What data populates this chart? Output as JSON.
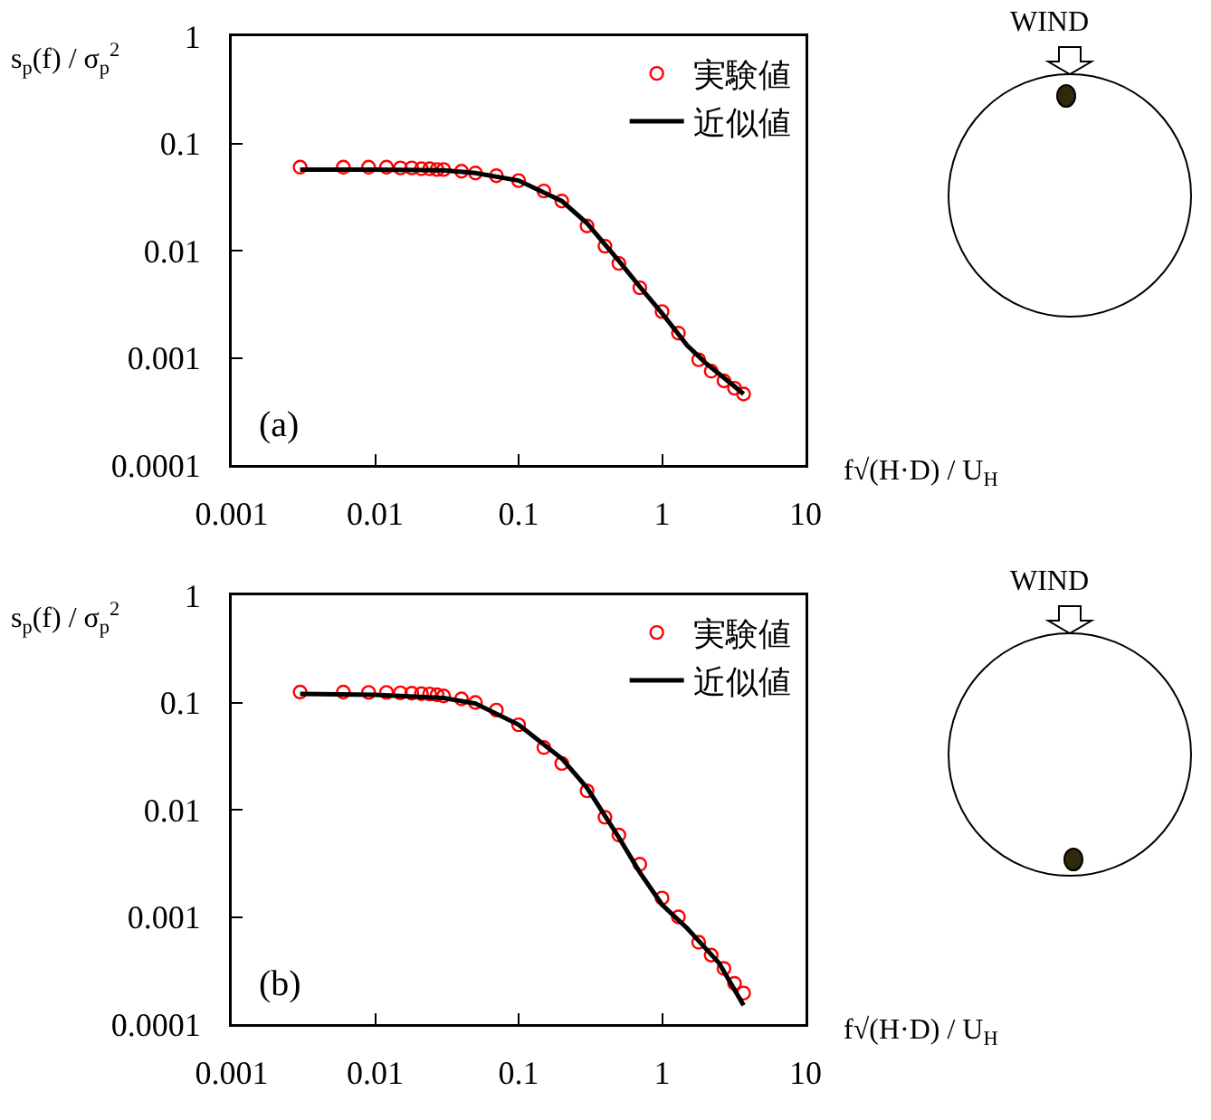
{
  "chart_data": [
    {
      "type": "scatter",
      "ylabel": "s$_{p}$(f) / σ$_{p}$$^{2}$",
      "xlabel": "f√(H·D) / U$_{H}$",
      "annotations": [
        "(a)",
        "WIND"
      ],
      "log": "xy",
      "xlim": [
        0.001,
        10
      ],
      "ylim": [
        0.0001,
        1
      ],
      "xticks": [
        0.001,
        0.01,
        0.1,
        1,
        10
      ],
      "yticks": [
        0.0001,
        0.001,
        0.01,
        0.1,
        1
      ],
      "grid": false,
      "legend": "top right",
      "series": [
        {
          "name": "実験値",
          "marker": "circle",
          "color": "#ff0000",
          "x": [
            0.003,
            0.006,
            0.009,
            0.012,
            0.015,
            0.018,
            0.021,
            0.024,
            0.027,
            0.03,
            0.04,
            0.05,
            0.07,
            0.1,
            0.15,
            0.2,
            0.3,
            0.4,
            0.5,
            0.7,
            1,
            1.3,
            1.8,
            2.2,
            2.7,
            3.2,
            3.7
          ],
          "values": [
            0.06,
            0.06,
            0.06,
            0.06,
            0.059,
            0.059,
            0.058,
            0.058,
            0.057,
            0.057,
            0.055,
            0.053,
            0.05,
            0.045,
            0.036,
            0.029,
            0.017,
            0.011,
            0.0076,
            0.0045,
            0.0027,
            0.0017,
            0.00096,
            0.00075,
            0.00061,
            0.00052,
            0.00046
          ]
        },
        {
          "name": "近似値",
          "type": "line",
          "color": "#000000",
          "x": [
            0.003,
            0.01,
            0.03,
            0.05,
            0.1,
            0.2,
            0.3,
            0.5,
            0.7,
            1,
            1.5,
            2,
            3,
            3.7
          ],
          "values": [
            0.057,
            0.057,
            0.056,
            0.053,
            0.045,
            0.029,
            0.018,
            0.008,
            0.0046,
            0.0026,
            0.0013,
            0.0009,
            0.00058,
            0.00046
          ]
        }
      ]
    },
    {
      "type": "scatter",
      "ylabel": "s$_{p}$(f) / σ$_{p}$$^{2}$",
      "xlabel": "f√(H·D) / U$_{H}$",
      "annotations": [
        "(b)",
        "WIND"
      ],
      "log": "xy",
      "xlim": [
        0.001,
        10
      ],
      "ylim": [
        0.0001,
        1
      ],
      "xticks": [
        0.001,
        0.01,
        0.1,
        1,
        10
      ],
      "yticks": [
        0.0001,
        0.001,
        0.01,
        0.1,
        1
      ],
      "grid": false,
      "legend": "top right",
      "series": [
        {
          "name": "実験値",
          "marker": "circle",
          "color": "#ff0000",
          "x": [
            0.003,
            0.006,
            0.009,
            0.012,
            0.015,
            0.018,
            0.021,
            0.024,
            0.027,
            0.03,
            0.04,
            0.05,
            0.07,
            0.1,
            0.15,
            0.2,
            0.3,
            0.4,
            0.5,
            0.7,
            1,
            1.3,
            1.8,
            2.2,
            2.7,
            3.2,
            3.7
          ],
          "values": [
            0.125,
            0.125,
            0.124,
            0.124,
            0.123,
            0.122,
            0.121,
            0.12,
            0.118,
            0.115,
            0.108,
            0.1,
            0.085,
            0.062,
            0.038,
            0.027,
            0.015,
            0.0085,
            0.0058,
            0.0031,
            0.0015,
            0.001,
            0.00058,
            0.00044,
            0.00033,
            0.00024,
            0.000195
          ]
        },
        {
          "name": "近似値",
          "type": "line",
          "color": "#000000",
          "x": [
            0.003,
            0.01,
            0.03,
            0.05,
            0.1,
            0.2,
            0.3,
            0.5,
            0.7,
            1,
            1.5,
            2.5,
            3.7
          ],
          "values": [
            0.12,
            0.118,
            0.11,
            0.098,
            0.062,
            0.03,
            0.016,
            0.0055,
            0.0026,
            0.0013,
            0.00078,
            0.00037,
            0.00015
          ]
        }
      ]
    }
  ]
}
